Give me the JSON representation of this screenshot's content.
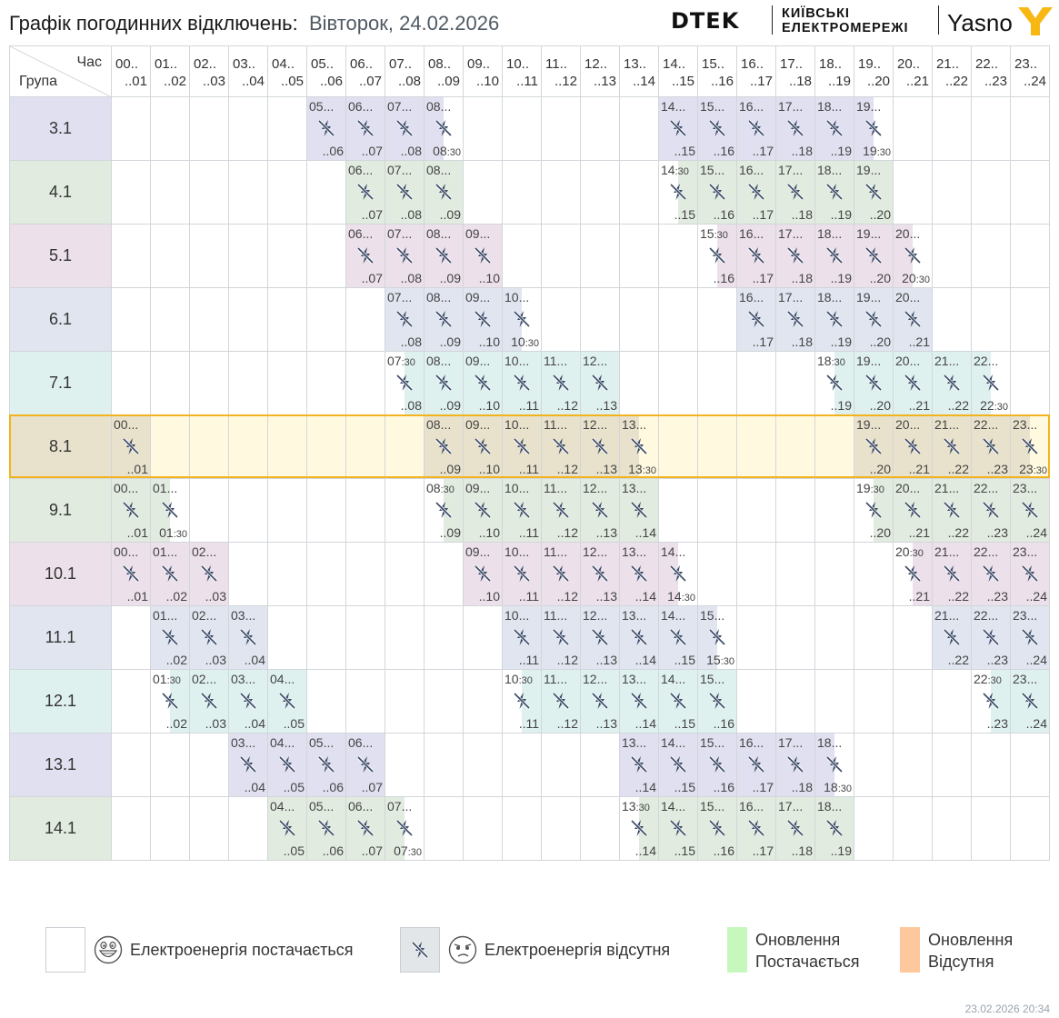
{
  "header": {
    "title": "Графік погодинних відключень:",
    "date": "Вівторок, 24.02.2026",
    "logo_dtek": "DTEK",
    "logo_org_line1": "КИЇВСЬКІ",
    "logo_org_line2": "ЕЛЕКТРОМЕРЕЖІ",
    "logo_yasno": "Yasno"
  },
  "table": {
    "corner_hour": "Час",
    "corner_group": "Група",
    "hours": [
      {
        "start": "00..",
        "end": "..01"
      },
      {
        "start": "01..",
        "end": "..02"
      },
      {
        "start": "02..",
        "end": "..03"
      },
      {
        "start": "03..",
        "end": "..04"
      },
      {
        "start": "04..",
        "end": "..05"
      },
      {
        "start": "05..",
        "end": "..06"
      },
      {
        "start": "06..",
        "end": "..07"
      },
      {
        "start": "07..",
        "end": "..08"
      },
      {
        "start": "08..",
        "end": "..09"
      },
      {
        "start": "09..",
        "end": "..10"
      },
      {
        "start": "10..",
        "end": "..11"
      },
      {
        "start": "11..",
        "end": "..12"
      },
      {
        "start": "12..",
        "end": "..13"
      },
      {
        "start": "13..",
        "end": "..14"
      },
      {
        "start": "14..",
        "end": "..15"
      },
      {
        "start": "15..",
        "end": "..16"
      },
      {
        "start": "16..",
        "end": "..17"
      },
      {
        "start": "17..",
        "end": "..18"
      },
      {
        "start": "18..",
        "end": "..19"
      },
      {
        "start": "19..",
        "end": "..20"
      },
      {
        "start": "20..",
        "end": "..21"
      },
      {
        "start": "21..",
        "end": "..22"
      },
      {
        "start": "22..",
        "end": "..23"
      },
      {
        "start": "23..",
        "end": "..24"
      }
    ],
    "groups": [
      {
        "name": "3.1",
        "color": "#e1e0f0",
        "cells": [
          0,
          0,
          0,
          0,
          0,
          1,
          1,
          1,
          3,
          0,
          0,
          0,
          0,
          0,
          1,
          1,
          1,
          1,
          1,
          3,
          0,
          0,
          0,
          0
        ]
      },
      {
        "name": "4.1",
        "color": "#e1ebdf",
        "cells": [
          0,
          0,
          0,
          0,
          0,
          0,
          1,
          1,
          1,
          0,
          0,
          0,
          0,
          0,
          2,
          1,
          1,
          1,
          1,
          1,
          0,
          0,
          0,
          0
        ]
      },
      {
        "name": "5.1",
        "color": "#ece0ea",
        "cells": [
          0,
          0,
          0,
          0,
          0,
          0,
          1,
          1,
          1,
          1,
          0,
          0,
          0,
          0,
          0,
          2,
          1,
          1,
          1,
          1,
          3,
          0,
          0,
          0
        ]
      },
      {
        "name": "6.1",
        "color": "#e0e5f0",
        "cells": [
          0,
          0,
          0,
          0,
          0,
          0,
          0,
          1,
          1,
          1,
          3,
          0,
          0,
          0,
          0,
          0,
          1,
          1,
          1,
          1,
          1,
          0,
          0,
          0
        ]
      },
      {
        "name": "7.1",
        "color": "#dff1ef",
        "cells": [
          0,
          0,
          0,
          0,
          0,
          0,
          0,
          2,
          1,
          1,
          1,
          1,
          1,
          0,
          0,
          0,
          0,
          0,
          2,
          1,
          1,
          1,
          3,
          0
        ]
      },
      {
        "name": "8.1",
        "color": "#e8e2cc",
        "highlight": true,
        "cells": [
          1,
          0,
          0,
          0,
          0,
          0,
          0,
          0,
          1,
          1,
          1,
          1,
          1,
          3,
          0,
          0,
          0,
          0,
          0,
          1,
          1,
          1,
          1,
          3
        ]
      },
      {
        "name": "9.1",
        "color": "#e1ebdf",
        "cells": [
          1,
          3,
          0,
          0,
          0,
          0,
          0,
          0,
          2,
          1,
          1,
          1,
          1,
          1,
          0,
          0,
          0,
          0,
          0,
          2,
          1,
          1,
          1,
          1
        ]
      },
      {
        "name": "10.1",
        "color": "#ece0ea",
        "cells": [
          1,
          1,
          1,
          0,
          0,
          0,
          0,
          0,
          0,
          1,
          1,
          1,
          1,
          1,
          3,
          0,
          0,
          0,
          0,
          0,
          2,
          1,
          1,
          1
        ]
      },
      {
        "name": "11.1",
        "color": "#e0e5f0",
        "cells": [
          0,
          1,
          1,
          1,
          0,
          0,
          0,
          0,
          0,
          0,
          1,
          1,
          1,
          1,
          1,
          3,
          0,
          0,
          0,
          0,
          0,
          1,
          1,
          1
        ]
      },
      {
        "name": "12.1",
        "color": "#dff1ef",
        "cells": [
          0,
          2,
          1,
          1,
          1,
          0,
          0,
          0,
          0,
          0,
          2,
          1,
          1,
          1,
          1,
          1,
          0,
          0,
          0,
          0,
          0,
          0,
          2,
          1
        ]
      },
      {
        "name": "13.1",
        "color": "#e1e0f0",
        "cells": [
          0,
          0,
          0,
          1,
          1,
          1,
          1,
          0,
          0,
          0,
          0,
          0,
          0,
          1,
          1,
          1,
          1,
          1,
          3,
          0,
          0,
          0,
          0,
          0
        ]
      },
      {
        "name": "14.1",
        "color": "#e1ebdf",
        "cells": [
          0,
          0,
          0,
          0,
          1,
          1,
          1,
          3,
          0,
          0,
          0,
          0,
          0,
          2,
          1,
          1,
          1,
          1,
          1,
          0,
          0,
          0,
          0,
          0
        ]
      }
    ]
  },
  "legend": {
    "on": "Електроенергія постачається",
    "off": "Електроенергія відсутня",
    "upd_on_line1": "Оновлення",
    "upd_on_line2": "Постачається",
    "upd_off_line1": "Оновлення",
    "upd_off_line2": "Відсутня",
    "upd_on_color": "#c6f7bd",
    "upd_off_color": "#fdc89b"
  },
  "footer": {
    "timestamp": "23.02.2026   20:34"
  },
  "icons": {
    "outage": "no-power-icon",
    "happy": "happy-face-icon",
    "sad": "sad-face-icon"
  }
}
